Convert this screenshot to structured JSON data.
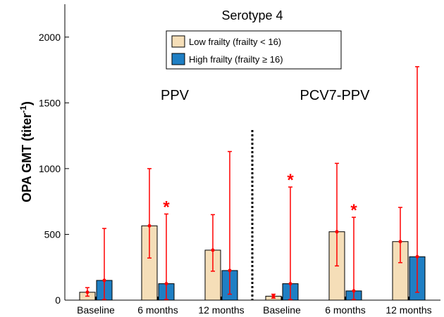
{
  "chart_data": {
    "type": "bar",
    "title": "Serotype 4",
    "ylabel": "OPA GMT (titer",
    "ylabel_sup": "-1",
    "ylabel_end": ")",
    "xlabel": "",
    "ylim": [
      0,
      2250
    ],
    "yticks": [
      0,
      500,
      1000,
      1500,
      2000
    ],
    "yticks_labels": [
      "0",
      "500",
      "1000",
      "1500",
      "2000"
    ],
    "grid": false,
    "legend_position": "top-center",
    "groups": [
      {
        "label": "PPV",
        "categories": [
          "Baseline",
          "6 months",
          "12 months"
        ]
      },
      {
        "label": "PCV7-PPV",
        "categories": [
          "Baseline",
          "6 months",
          "12 months"
        ]
      }
    ],
    "categories": [
      "Baseline",
      "6 months",
      "12 months",
      "Baseline",
      "6 months",
      "12 months"
    ],
    "series": [
      {
        "name": "Low frailty (frailty < 16)",
        "color": "#f5deb8",
        "values": [
          60,
          565,
          380,
          30,
          520,
          445
        ],
        "err_low": [
          30,
          320,
          220,
          15,
          260,
          285
        ],
        "err_high": [
          95,
          1000,
          650,
          45,
          1040,
          705
        ]
      },
      {
        "name": "High frailty (frailty ≥ 16)",
        "color": "#1f7fc4",
        "values": [
          150,
          125,
          225,
          125,
          70,
          330
        ],
        "err_low": [
          5,
          5,
          45,
          5,
          5,
          60
        ],
        "err_high": [
          545,
          655,
          1130,
          860,
          630,
          1775
        ]
      }
    ],
    "significance_markers": [
      {
        "category_index": 1,
        "series_index": 1,
        "label": "*"
      },
      {
        "category_index": 3,
        "series_index": 1,
        "label": "*"
      },
      {
        "category_index": 4,
        "series_index": 1,
        "label": "*"
      }
    ],
    "error_bar_color": "#ff0000",
    "divider_between_groups": true
  }
}
